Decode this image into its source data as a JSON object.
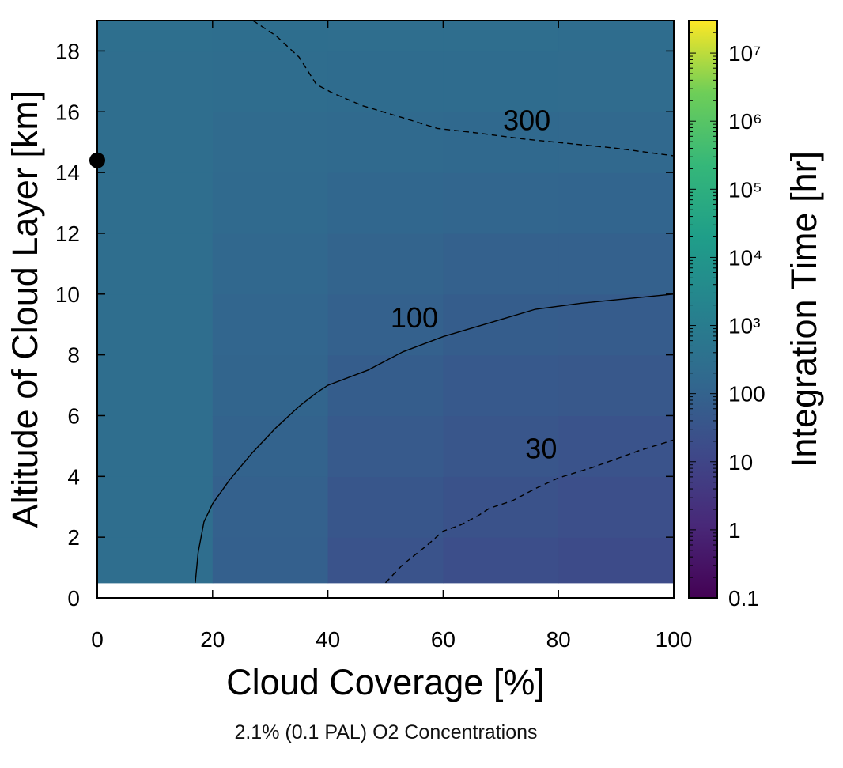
{
  "chart_data": {
    "type": "heatmap",
    "title": "",
    "subtitle": "2.1% (0.1 PAL) O2 Concentrations",
    "xlabel": "Cloud Coverage [%]",
    "ylabel": "Altitude of Cloud Layer [km]",
    "xlim": [
      0,
      100
    ],
    "ylim": [
      0,
      19
    ],
    "xticks": [
      0,
      20,
      40,
      60,
      80,
      100
    ],
    "yticks": [
      0,
      2,
      4,
      6,
      8,
      10,
      12,
      14,
      16,
      18
    ],
    "colorbar": {
      "label": "Integration Time [hr]",
      "scale": "log",
      "range": [
        0.1,
        30000000
      ],
      "colormap": "viridis",
      "ticks": [
        {
          "value": 0.1,
          "label": "0.1"
        },
        {
          "value": 1,
          "label": "1"
        },
        {
          "value": 10,
          "label": "10"
        },
        {
          "value": 100,
          "label": "100"
        },
        {
          "value": 1000,
          "label": "10³"
        },
        {
          "value": 10000,
          "label": "10⁴"
        },
        {
          "value": 100000,
          "label": "10⁵"
        },
        {
          "value": 1000000,
          "label": "10⁶"
        },
        {
          "value": 10000000,
          "label": "10⁷"
        }
      ]
    },
    "grid": {
      "x_edges": [
        0,
        20,
        40,
        60,
        80,
        100
      ],
      "y_edges": [
        0.5,
        2,
        4,
        6,
        8,
        10,
        12,
        14,
        16,
        18,
        19
      ],
      "values": [
        [
          260,
          80,
          28,
          20,
          16
        ],
        [
          260,
          90,
          38,
          26,
          21
        ],
        [
          260,
          105,
          50,
          36,
          30
        ],
        [
          260,
          115,
          65,
          48,
          42
        ],
        [
          260,
          130,
          85,
          65,
          58
        ],
        [
          260,
          150,
          110,
          90,
          85
        ],
        [
          260,
          175,
          140,
          125,
          120
        ],
        [
          260,
          205,
          185,
          170,
          165
        ],
        [
          260,
          235,
          225,
          215,
          210
        ],
        [
          280,
          265,
          260,
          255,
          250
        ]
      ]
    },
    "contours": [
      {
        "level": 30,
        "label": "30",
        "style": "dashed",
        "label_at": [
          77,
          4.6
        ],
        "points": [
          [
            50,
            0.5
          ],
          [
            53,
            1.1
          ],
          [
            57,
            1.7
          ],
          [
            60,
            2.2
          ],
          [
            63,
            2.4
          ],
          [
            66,
            2.7
          ],
          [
            68,
            2.95
          ],
          [
            72,
            3.2
          ],
          [
            76,
            3.6
          ],
          [
            80,
            3.95
          ],
          [
            86,
            4.3
          ],
          [
            94,
            4.85
          ],
          [
            100,
            5.2
          ]
        ]
      },
      {
        "level": 100,
        "label": "100",
        "style": "solid",
        "label_at": [
          55,
          8.9
        ],
        "points": [
          [
            17,
            0.5
          ],
          [
            17.5,
            1.5
          ],
          [
            18.5,
            2.5
          ],
          [
            20,
            3.1
          ],
          [
            23,
            3.9
          ],
          [
            27,
            4.8
          ],
          [
            31,
            5.6
          ],
          [
            35,
            6.3
          ],
          [
            38,
            6.75
          ],
          [
            40,
            7
          ],
          [
            47,
            7.5
          ],
          [
            53,
            8.1
          ],
          [
            60,
            8.6
          ],
          [
            68,
            9.05
          ],
          [
            76,
            9.5
          ],
          [
            84,
            9.7
          ],
          [
            92,
            9.85
          ],
          [
            100,
            10
          ]
        ]
      },
      {
        "level": 300,
        "label": "300",
        "style": "dashed",
        "label_at": [
          74.5,
          15.4
        ],
        "points": [
          [
            27,
            19
          ],
          [
            31,
            18.5
          ],
          [
            35,
            17.8
          ],
          [
            38,
            16.9
          ],
          [
            41,
            16.6
          ],
          [
            46,
            16.2
          ],
          [
            53,
            15.8
          ],
          [
            59,
            15.45
          ],
          [
            66,
            15.3
          ],
          [
            74,
            15.1
          ],
          [
            82,
            14.95
          ],
          [
            90,
            14.8
          ],
          [
            100,
            14.55
          ]
        ]
      }
    ],
    "markers": [
      {
        "x": 0,
        "y": 14.4,
        "shape": "circle",
        "color": "#000000"
      }
    ]
  }
}
